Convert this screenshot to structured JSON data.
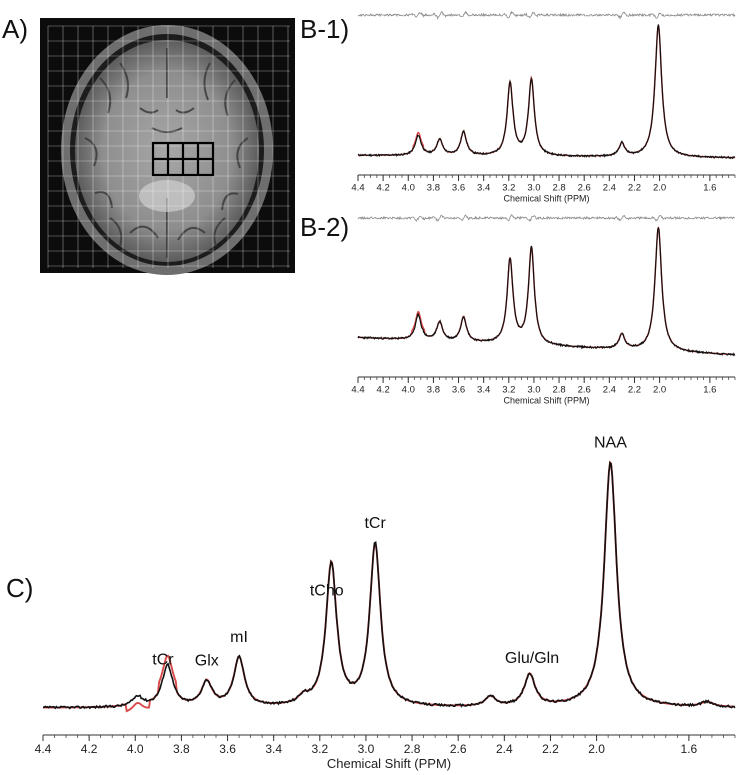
{
  "panels": {
    "a": "A)",
    "b1": "B-1)",
    "b2": "B-2)",
    "c": "C)"
  },
  "colors": {
    "measured": "#111111",
    "fit": "#d94a4a",
    "residual": "#8a8a8a",
    "voi_grid": "#000000",
    "csi_grid": "#ffffff"
  },
  "chart_data": [
    {
      "id": "b1",
      "type": "line",
      "xlabel": "Chemical Shift (PPM)",
      "xlim": [
        4.4,
        1.4
      ],
      "x_reversed": true,
      "tick_labels": [
        "4.4",
        "4.2",
        "4.0",
        "3.8",
        "3.6",
        "3.4",
        "3.2",
        "3.0",
        "2.8",
        "2.6",
        "2.4",
        "2.2",
        "2.0",
        "1.6"
      ],
      "tick_values": [
        4.4,
        4.2,
        4.0,
        3.8,
        3.6,
        3.4,
        3.2,
        3.0,
        2.8,
        2.6,
        2.4,
        2.2,
        2.0,
        1.6
      ],
      "series": [
        {
          "role": "measured"
        },
        {
          "role": "fit"
        },
        {
          "role": "residual"
        }
      ],
      "peaks_ppm": [
        3.92,
        3.75,
        3.56,
        3.19,
        3.02,
        2.3,
        2.01
      ],
      "peaks_relative_height": [
        0.15,
        0.12,
        0.18,
        0.55,
        0.58,
        0.1,
        1.0
      ]
    },
    {
      "id": "b2",
      "type": "line",
      "xlabel": "Chemical Shift (PPM)",
      "xlim": [
        4.4,
        1.4
      ],
      "x_reversed": true,
      "tick_labels": [
        "4.4",
        "4.2",
        "4.0",
        "3.8",
        "3.6",
        "3.4",
        "3.2",
        "3.0",
        "2.8",
        "2.6",
        "2.4",
        "2.2",
        "2.0",
        "1.6"
      ],
      "tick_values": [
        4.4,
        4.2,
        4.0,
        3.8,
        3.6,
        3.4,
        3.2,
        3.0,
        2.8,
        2.6,
        2.4,
        2.2,
        2.0,
        1.6
      ],
      "series": [
        {
          "role": "measured"
        },
        {
          "role": "fit"
        },
        {
          "role": "residual"
        }
      ],
      "peaks_ppm": [
        3.92,
        3.75,
        3.56,
        3.19,
        3.02,
        2.3,
        2.01
      ],
      "peaks_relative_height": [
        0.2,
        0.15,
        0.2,
        0.68,
        0.78,
        0.12,
        1.0
      ]
    },
    {
      "id": "c",
      "type": "line",
      "xlabel": "Chemical Shift (PPM)",
      "xlim": [
        4.4,
        1.4
      ],
      "x_reversed": true,
      "tick_labels": [
        "4.4",
        "4.2",
        "4.0",
        "3.8",
        "3.6",
        "3.4",
        "3.2",
        "3.0",
        "2.8",
        "2.6",
        "2.4",
        "2.2",
        "2.0",
        "1.6"
      ],
      "tick_values": [
        4.4,
        4.2,
        4.0,
        3.8,
        3.6,
        3.4,
        3.2,
        3.0,
        2.8,
        2.6,
        2.4,
        2.2,
        2.0,
        1.6
      ],
      "series": [
        {
          "role": "measured"
        },
        {
          "role": "fit"
        }
      ],
      "annotations": [
        {
          "text": "tCr",
          "ppm": 3.88
        },
        {
          "text": "Glx",
          "ppm": 3.69
        },
        {
          "text": "mI",
          "ppm": 3.55
        },
        {
          "text": "tCho",
          "ppm": 3.17
        },
        {
          "text": "tCr",
          "ppm": 2.96
        },
        {
          "text": "Glu/Gln",
          "ppm": 2.28
        },
        {
          "text": "NAA",
          "ppm": 1.94
        }
      ],
      "peaks_ppm": [
        3.99,
        3.86,
        3.69,
        3.55,
        3.27,
        3.15,
        2.96,
        2.46,
        2.29,
        1.94,
        1.52
      ],
      "peaks_relative_height": [
        0.04,
        0.17,
        0.1,
        0.2,
        0.03,
        0.58,
        0.66,
        0.04,
        0.13,
        1.0,
        0.02
      ]
    }
  ]
}
